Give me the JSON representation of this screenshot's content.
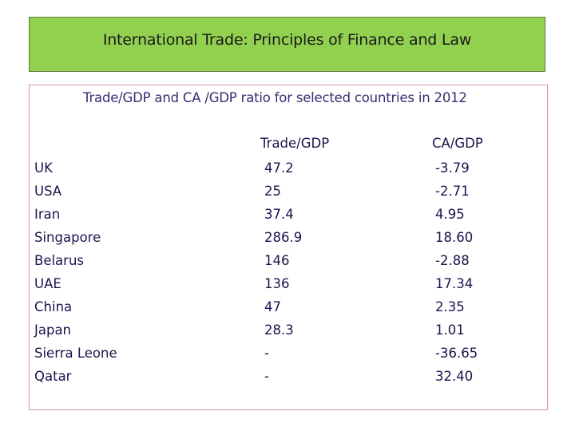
{
  "header": {
    "title": "International Trade: Principles of  Finance  and Law"
  },
  "table": {
    "subtitle": "Trade/GDP   and CA /GDP ratio for selected countries in 2012",
    "columns": [
      "Trade/GDP",
      "CA/GDP"
    ],
    "rows": [
      {
        "country": "UK",
        "trade_gdp": "47.2",
        "ca_gdp": "-3.79"
      },
      {
        "country": "USA",
        "trade_gdp": "25",
        "ca_gdp": "-2.71"
      },
      {
        "country": "Iran",
        "trade_gdp": "37.4",
        "ca_gdp": "4.95"
      },
      {
        "country": "Singapore",
        "trade_gdp": "286.9",
        "ca_gdp": "18.60"
      },
      {
        "country": "Belarus",
        "trade_gdp": "146",
        "ca_gdp": "-2.88"
      },
      {
        "country": "UAE",
        "trade_gdp": "136",
        "ca_gdp": "17.34"
      },
      {
        "country": "China",
        "trade_gdp": "47",
        "ca_gdp": "2.35"
      },
      {
        "country": "Japan",
        "trade_gdp": "28.3",
        "ca_gdp": "1.01"
      },
      {
        "country": "Sierra Leone",
        "trade_gdp": "-",
        "ca_gdp": "-36.65"
      },
      {
        "country": "Qatar",
        "trade_gdp": "-",
        "ca_gdp": "32.40"
      }
    ]
  },
  "colors": {
    "header_bg": "#92d050",
    "content_border": "#d99694",
    "text": "#20124d"
  }
}
